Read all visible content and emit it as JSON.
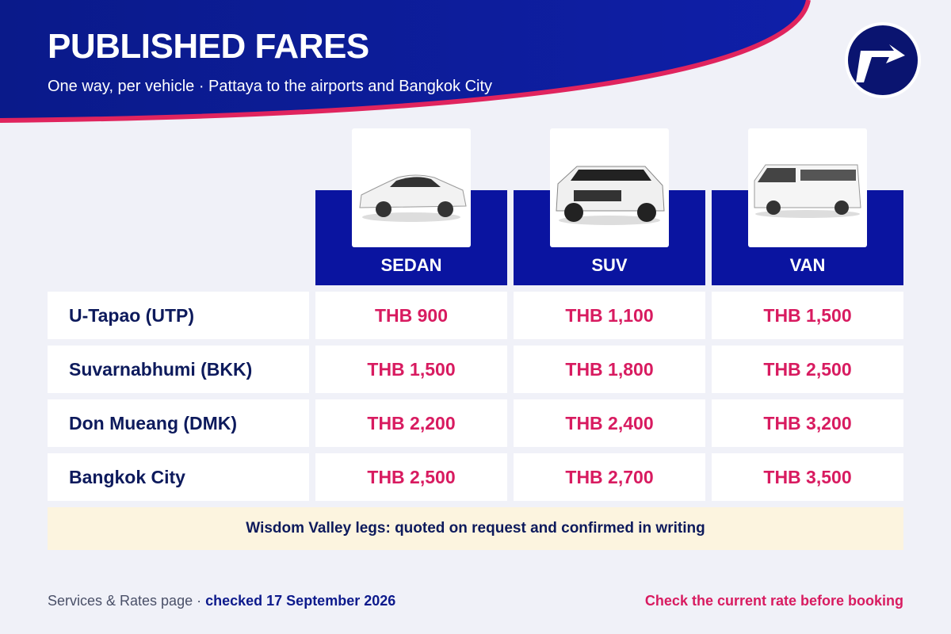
{
  "header": {
    "title": "PUBLISHED FARES",
    "subtitle": "One way, per vehicle · Pattaya to the airports and Bangkok City"
  },
  "table": {
    "columns": [
      "SEDAN",
      "SUV",
      "VAN"
    ],
    "rows": [
      [
        "U-Tapao (UTP)",
        "THB 900",
        "THB 1,100",
        "THB 1,500"
      ],
      [
        "Suvarnabhumi (BKK)",
        "THB 1,500",
        "THB 1,800",
        "THB 2,500"
      ],
      [
        "Don Mueang (DMK)",
        "THB 2,200",
        "THB 2,400",
        "THB 3,200"
      ],
      [
        "Bangkok City",
        "THB 2,500",
        "THB 2,700",
        "THB 3,500"
      ]
    ],
    "note": "Wisdom Valley legs: quoted on request and confirmed in writing"
  },
  "footer": {
    "source": "Services & Rates page ·",
    "checked": "checked 17 September 2026",
    "warning": "Check the current rate before booking"
  }
}
